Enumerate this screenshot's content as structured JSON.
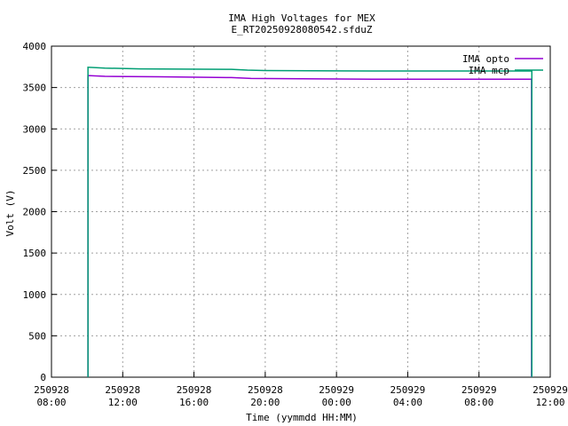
{
  "chart_data": {
    "type": "line",
    "title": "IMA High Voltages for MEX",
    "subtitle": "E_RT20250928080542.sfduZ",
    "x_label": "Time (yymmdd HH:MM)",
    "y_label": "Volt (V)",
    "xlim": [
      "250928 08:00",
      "250929 12:00"
    ],
    "xticks": [
      "250928 08:00",
      "250928 12:00",
      "250928 16:00",
      "250928 20:00",
      "250929 00:00",
      "250929 04:00",
      "250929 08:00",
      "250929 12:00"
    ],
    "ylim": [
      0,
      4000
    ],
    "yticks": [
      0,
      500,
      1000,
      1500,
      2000,
      2500,
      3000,
      3500,
      4000
    ],
    "grid": true,
    "legend": "top-right",
    "series": [
      {
        "name": "IMA opto",
        "color": "#9400d3",
        "x": [
          "250928 10:03",
          "250928 10:03",
          "250928 11:00",
          "250928 14:00",
          "250928 18:06",
          "250928 19:12",
          "250928 23:00",
          "250929 02:00",
          "250929 10:57",
          "250929 10:57"
        ],
        "values": [
          0,
          3645,
          3635,
          3630,
          3620,
          3610,
          3605,
          3600,
          3600,
          0
        ]
      },
      {
        "name": "IMA mcp",
        "color": "#009e73",
        "x": [
          "250928 10:03",
          "250928 10:03",
          "250928 11:00",
          "250928 13:00",
          "250928 18:06",
          "250928 19:00",
          "250928 20:00",
          "250929 02:00",
          "250929 10:58",
          "250929 10:58"
        ],
        "values": [
          0,
          3745,
          3735,
          3725,
          3720,
          3710,
          3705,
          3700,
          3700,
          0
        ]
      }
    ]
  }
}
